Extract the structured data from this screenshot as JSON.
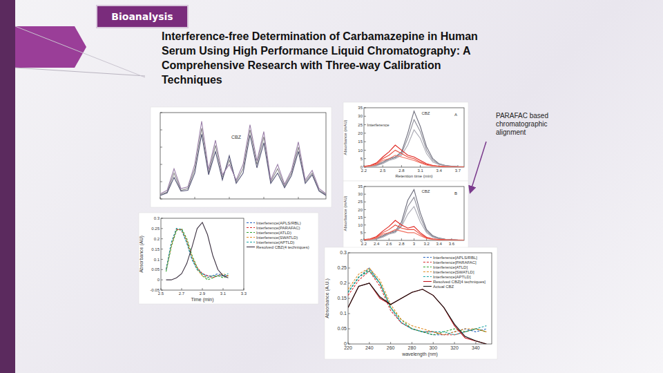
{
  "header": {
    "tag": "Bioanalysis",
    "title_lines": [
      "Interference-free Determination of Carbamazepine in Human",
      "Serum Using High Performance Liquid Chromatography: A",
      "Comprehensive Research with Three-way Calibration",
      "Techniques"
    ]
  },
  "annotation": "PARAFAC based chromatographic alignment",
  "chart_data": [
    {
      "type": "line",
      "tick_labels": false,
      "x": [
        0,
        1,
        2,
        3,
        4,
        5,
        6,
        7,
        8,
        9,
        10,
        11,
        12,
        13,
        14,
        15,
        16,
        17,
        18,
        19,
        20,
        21,
        22,
        23,
        24
      ],
      "xlim": [
        0,
        24
      ],
      "ylim": [
        0,
        1
      ],
      "xticks": [
        0,
        5,
        10,
        15,
        20
      ],
      "yticks": [
        0,
        0.2,
        0.4,
        0.6,
        0.8,
        1
      ],
      "annotations": [
        {
          "text": "CBZ",
          "x": 10.3,
          "y": 0.7
        }
      ],
      "series": [
        {
          "color": "#8a8a8a",
          "values": [
            0.05,
            0.08,
            0.3,
            0.1,
            0.12,
            0.35,
            0.82,
            0.3,
            0.62,
            0.25,
            0.45,
            0.2,
            0.35,
            0.8,
            0.4,
            0.72,
            0.2,
            0.35,
            0.15,
            0.3,
            0.6,
            0.2,
            0.3,
            0.1,
            0.05
          ]
        },
        {
          "color": "#555577",
          "values": [
            0.04,
            0.07,
            0.25,
            0.09,
            0.1,
            0.3,
            0.75,
            0.28,
            0.55,
            0.22,
            0.5,
            0.18,
            0.3,
            0.74,
            0.36,
            0.65,
            0.18,
            0.3,
            0.13,
            0.27,
            0.55,
            0.18,
            0.28,
            0.09,
            0.04
          ]
        },
        {
          "color": "#9a7fa8",
          "values": [
            0.06,
            0.1,
            0.35,
            0.12,
            0.14,
            0.4,
            0.9,
            0.34,
            0.68,
            0.28,
            0.4,
            0.22,
            0.4,
            0.86,
            0.44,
            0.78,
            0.22,
            0.4,
            0.17,
            0.33,
            0.66,
            0.22,
            0.33,
            0.12,
            0.06
          ]
        }
      ]
    },
    {
      "type": "line",
      "title": "A",
      "x_label": "Retention time (min)",
      "y_label": "Absorbance (mAU)",
      "x": [
        2.2,
        2.3,
        2.4,
        2.5,
        2.6,
        2.7,
        2.8,
        2.9,
        3.0,
        3.1,
        3.2,
        3.3,
        3.4,
        3.5,
        3.6,
        3.7,
        3.8
      ],
      "xlim": [
        2.2,
        3.8
      ],
      "ylim": [
        0,
        35
      ],
      "xticks": [
        2.2,
        2.5,
        2.8,
        3.1,
        3.4,
        3.7
      ],
      "yticks": [
        0,
        5,
        10,
        15,
        20,
        25,
        30,
        35
      ],
      "annotations": [
        {
          "text": "CBZ",
          "x": 3.12,
          "y": 31
        },
        {
          "text": "Interference",
          "x": 2.25,
          "y": 24
        }
      ],
      "series": [
        {
          "color": "#6b6b7a",
          "values": [
            0.5,
            0.7,
            1.2,
            3,
            5,
            6,
            9,
            20,
            33,
            24,
            12,
            5,
            2,
            1,
            0.6,
            0.4,
            0.3
          ]
        },
        {
          "color": "#8d8d99",
          "values": [
            0.4,
            0.6,
            1,
            2.5,
            4.5,
            5.5,
            8,
            17,
            28,
            21,
            10,
            4,
            1.8,
            0.9,
            0.5,
            0.3,
            0.2
          ]
        },
        {
          "color": "#a9a9b3",
          "values": [
            0.3,
            0.5,
            0.8,
            2,
            4,
            5,
            7,
            13,
            22,
            17,
            8,
            3,
            1.5,
            0.8,
            0.4,
            0.3,
            0.2
          ]
        },
        {
          "color": "#e0201b",
          "values": [
            0.5,
            1,
            2.5,
            6,
            9,
            13,
            10,
            7,
            6,
            4,
            2,
            1,
            0.6,
            0.4,
            0.3,
            0.2,
            0.2
          ]
        },
        {
          "color": "#e94a3a",
          "values": [
            0.4,
            0.8,
            2,
            5,
            7,
            10,
            8,
            6,
            5,
            3,
            1.5,
            0.8,
            0.5,
            0.3,
            0.2,
            0.2,
            0.1
          ]
        },
        {
          "color": "#f07060",
          "values": [
            0.3,
            0.6,
            1.5,
            4,
            5,
            7,
            6,
            5,
            4,
            2.5,
            1.2,
            0.6,
            0.4,
            0.3,
            0.2,
            0.1,
            0.1
          ]
        }
      ]
    },
    {
      "type": "line",
      "title": "B",
      "y_label": "Absorbance (mAU)",
      "x": [
        2.2,
        2.3,
        2.4,
        2.5,
        2.6,
        2.7,
        2.8,
        2.9,
        3.0,
        3.1,
        3.2,
        3.3,
        3.4,
        3.5,
        3.6,
        3.7,
        3.8
      ],
      "xlim": [
        2.2,
        3.8
      ],
      "ylim": [
        0,
        35
      ],
      "xticks": [
        2.2,
        2.4,
        2.6,
        2.8,
        3,
        3.2,
        3.4,
        3.6
      ],
      "yticks": [
        0,
        5,
        10,
        15,
        20,
        25,
        30,
        35
      ],
      "annotations": [
        {
          "text": "CBZ",
          "x": 3.12,
          "y": 31
        }
      ],
      "series": [
        {
          "color": "#6b6b7a",
          "values": [
            0.5,
            0.7,
            1.2,
            3,
            5,
            6,
            12,
            26,
            33,
            18,
            7,
            3,
            1.5,
            0.8,
            0.5,
            0.3,
            0.2
          ]
        },
        {
          "color": "#8d8d99",
          "values": [
            0.4,
            0.6,
            1,
            2.5,
            4.5,
            5.5,
            10,
            22,
            28,
            15,
            6,
            2.5,
            1.2,
            0.7,
            0.4,
            0.3,
            0.2
          ]
        },
        {
          "color": "#a9a9b3",
          "values": [
            0.3,
            0.5,
            0.8,
            2,
            4,
            5,
            9,
            17,
            22,
            12,
            5,
            2,
            1,
            0.6,
            0.3,
            0.2,
            0.1
          ]
        },
        {
          "color": "#e0201b",
          "values": [
            0.5,
            1,
            2.5,
            6,
            9,
            13,
            10,
            8,
            9,
            5,
            2,
            1,
            0.6,
            0.4,
            0.3,
            0.2,
            0.2
          ]
        },
        {
          "color": "#e94a3a",
          "values": [
            0.4,
            0.8,
            2,
            5,
            7,
            10,
            8,
            7,
            7,
            4,
            1.5,
            0.8,
            0.5,
            0.3,
            0.2,
            0.2,
            0.1
          ]
        },
        {
          "color": "#f07060",
          "values": [
            0.3,
            0.6,
            1.5,
            4,
            5,
            7,
            6,
            5,
            5,
            3,
            1.2,
            0.6,
            0.4,
            0.3,
            0.2,
            0.1,
            0.1
          ]
        }
      ]
    },
    {
      "type": "line",
      "x_label": "Time (min)",
      "y_label": "Absorbance (AU)",
      "x": [
        2.55,
        2.6,
        2.65,
        2.7,
        2.75,
        2.8,
        2.85,
        2.9,
        2.95,
        3.0,
        3.05,
        3.1,
        3.15
      ],
      "xlim": [
        2.5,
        3.3
      ],
      "ylim": [
        -0.05,
        0.3
      ],
      "xticks": [
        2.5,
        2.7,
        2.9,
        3.1,
        3.3
      ],
      "yticks": [
        -0.05,
        0,
        0.05,
        0.1,
        0.15,
        0.2,
        0.25,
        0.3
      ],
      "series": [
        {
          "name": "Interference(APLS/RBL)",
          "color": "#1f5fbf",
          "line_style": "dashed",
          "values": [
            0.05,
            0.18,
            0.25,
            0.24,
            0.18,
            0.1,
            0.05,
            0.03,
            0.02,
            0.02,
            0.03,
            0.02,
            0.02
          ]
        },
        {
          "name": "Interference(PARAFAC)",
          "color": "#d62728",
          "line_style": "dashed",
          "values": [
            0.05,
            0.17,
            0.245,
            0.245,
            0.19,
            0.11,
            0.06,
            0.03,
            0.02,
            0.01,
            0.02,
            0.02,
            0.02
          ]
        },
        {
          "name": "Interference(ATLD)",
          "color": "#2ca02c",
          "line_style": "dashed",
          "values": [
            0.04,
            0.16,
            0.24,
            0.25,
            0.2,
            0.12,
            0.06,
            0.02,
            0,
            0.01,
            0.02,
            0.01,
            0.02
          ]
        },
        {
          "name": "Interference(SWATLD)",
          "color": "#e08a1e",
          "line_style": "dashed",
          "values": [
            0.05,
            0.17,
            0.25,
            0.24,
            0.19,
            0.11,
            0.05,
            0.02,
            0.01,
            0.02,
            0.02,
            0.03,
            0.02
          ]
        },
        {
          "name": "Interference(APTLD)",
          "color": "#17a2a2",
          "line_style": "dashed",
          "values": [
            0.05,
            0.18,
            0.25,
            0.245,
            0.18,
            0.1,
            0.05,
            0.03,
            0.01,
            0.02,
            0.02,
            0.02,
            0.03
          ]
        },
        {
          "name": "Resolved CBZ(4 techniques)",
          "color": "#3a2f3f",
          "line_style": "solid",
          "values": [
            0,
            0,
            0.01,
            0.03,
            0.08,
            0.16,
            0.25,
            0.28,
            0.22,
            0.12,
            0.05,
            0.02,
            0.01
          ]
        }
      ]
    },
    {
      "type": "line",
      "x_label": "wavelength (nm)",
      "y_label": "Absorbance (A.U.)",
      "x": [
        220,
        230,
        240,
        250,
        260,
        270,
        280,
        290,
        300,
        310,
        320,
        330,
        340,
        350
      ],
      "xlim": [
        220,
        355
      ],
      "ylim": [
        0,
        0.3
      ],
      "xticks": [
        220,
        240,
        260,
        280,
        300,
        320,
        340
      ],
      "yticks": [
        0,
        0.05,
        0.1,
        0.15,
        0.2,
        0.25,
        0.3
      ],
      "series": [
        {
          "name": "Interference[APLS/RBL]",
          "color": "#1f5fbf",
          "line_style": "dashed",
          "values": [
            0.17,
            0.22,
            0.25,
            0.2,
            0.12,
            0.07,
            0.05,
            0.04,
            0.03,
            0.03,
            0.04,
            0.05,
            0.04,
            0.05
          ]
        },
        {
          "name": "Interference[PARAFAC]",
          "color": "#d62728",
          "line_style": "dashed",
          "values": [
            0.16,
            0.21,
            0.24,
            0.19,
            0.11,
            0.07,
            0.05,
            0.04,
            0.04,
            0.03,
            0.03,
            0.04,
            0.05,
            0.04
          ]
        },
        {
          "name": "Interference[ATLD]",
          "color": "#2ca02c",
          "line_style": "dashed",
          "values": [
            0.17,
            0.22,
            0.245,
            0.2,
            0.12,
            0.08,
            0.05,
            0.04,
            0.03,
            0.04,
            0.05,
            0.04,
            0.05,
            0.04
          ]
        },
        {
          "name": "Interference[SWATLD]",
          "color": "#e08a1e",
          "line_style": "dashed",
          "values": [
            0.18,
            0.23,
            0.25,
            0.21,
            0.13,
            0.08,
            0.06,
            0.05,
            0.04,
            0.03,
            0.04,
            0.05,
            0.05,
            0.04
          ]
        },
        {
          "name": "Interference[APTLD]",
          "color": "#17a2a2",
          "line_style": "dashed",
          "values": [
            0.17,
            0.22,
            0.24,
            0.2,
            0.12,
            0.07,
            0.05,
            0.04,
            0.04,
            0.04,
            0.03,
            0.04,
            0.05,
            0.06
          ]
        },
        {
          "name": "Resolved CBZ[4 techniques]",
          "color": "#c0141b",
          "line_style": "solid",
          "values": [
            0.12,
            0.19,
            0.2,
            0.15,
            0.13,
            0.15,
            0.17,
            0.18,
            0.16,
            0.12,
            0.06,
            0.02,
            0.01,
            0
          ]
        },
        {
          "name": "Actual CBZ",
          "color": "#111111",
          "line_style": "solid",
          "values": [
            0.12,
            0.19,
            0.2,
            0.155,
            0.13,
            0.15,
            0.17,
            0.18,
            0.16,
            0.12,
            0.065,
            0.025,
            0.01,
            0
          ]
        }
      ]
    }
  ]
}
